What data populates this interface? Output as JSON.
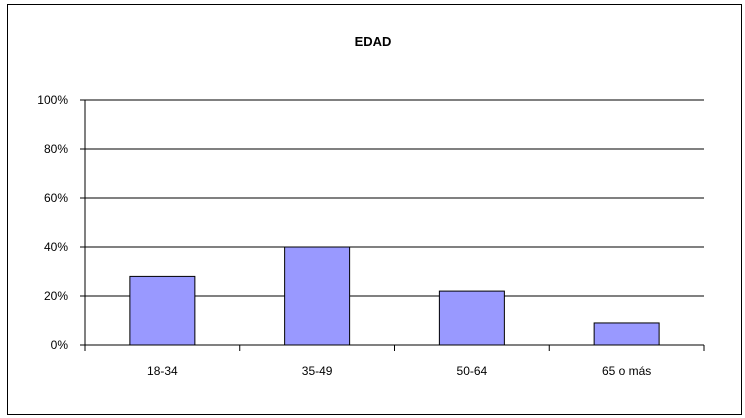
{
  "chart_data": {
    "type": "bar",
    "title": "EDAD",
    "categories": [
      "18-34",
      "35-49",
      "50-64",
      "65 o más"
    ],
    "values": [
      28,
      40,
      22,
      9
    ],
    "ylim": [
      0,
      100
    ],
    "yticks": [
      0,
      20,
      40,
      60,
      80,
      100
    ],
    "ytick_labels": [
      "0%",
      "20%",
      "40%",
      "60%",
      "80%",
      "100%"
    ],
    "grid": true,
    "legend": "none",
    "colors": {
      "bar_fill": "#9999ff",
      "bar_stroke": "#000000",
      "grid": "#000000"
    }
  }
}
